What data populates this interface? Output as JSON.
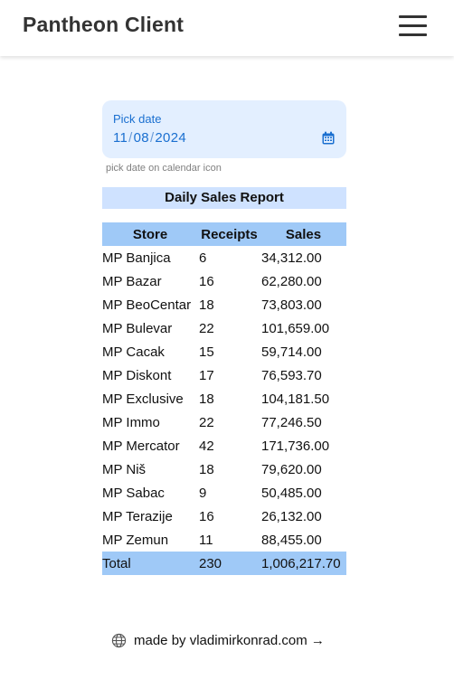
{
  "header": {
    "title": "Pantheon Client",
    "menu_icon": "hamburger-menu-icon"
  },
  "date_picker": {
    "label": "Pick date",
    "day": "11",
    "month": "08",
    "year": "2024",
    "separator": "/",
    "icon": "calendar-icon",
    "hint": "pick date on calendar icon",
    "accent_color": "#1a6fd0",
    "background_color": "#e3efff"
  },
  "report": {
    "title": "Daily Sales Report",
    "columns": [
      "Store",
      "Receipts",
      "Sales"
    ],
    "rows": [
      {
        "store": "MP Banjica",
        "receipts": "6",
        "sales": "34,312.00"
      },
      {
        "store": "MP Bazar",
        "receipts": "16",
        "sales": "62,280.00"
      },
      {
        "store": "MP BeoCentar",
        "receipts": "18",
        "sales": "73,803.00"
      },
      {
        "store": "MP Bulevar",
        "receipts": "22",
        "sales": "101,659.00"
      },
      {
        "store": "MP Cacak",
        "receipts": "15",
        "sales": "59,714.00"
      },
      {
        "store": "MP Diskont",
        "receipts": "17",
        "sales": "76,593.70"
      },
      {
        "store": "MP Exclusive",
        "receipts": "18",
        "sales": "104,181.50"
      },
      {
        "store": "MP Immo",
        "receipts": "22",
        "sales": "77,246.50"
      },
      {
        "store": "MP Mercator",
        "receipts": "42",
        "sales": "171,736.00"
      },
      {
        "store": "MP Niš",
        "receipts": "18",
        "sales": "79,620.00"
      },
      {
        "store": "MP Sabac",
        "receipts": "9",
        "sales": "50,485.00"
      },
      {
        "store": "MP Terazije",
        "receipts": "16",
        "sales": "26,132.00"
      },
      {
        "store": "MP Zemun",
        "receipts": "11",
        "sales": "88,455.00"
      }
    ],
    "total": {
      "label": "Total",
      "receipts": "230",
      "sales": "1,006,217.70"
    },
    "header_color": "#9fc9f7",
    "title_color": "#cfe2ff"
  },
  "footer": {
    "icon": "globe-icon",
    "text": "made by vladimirkonrad.com →"
  }
}
